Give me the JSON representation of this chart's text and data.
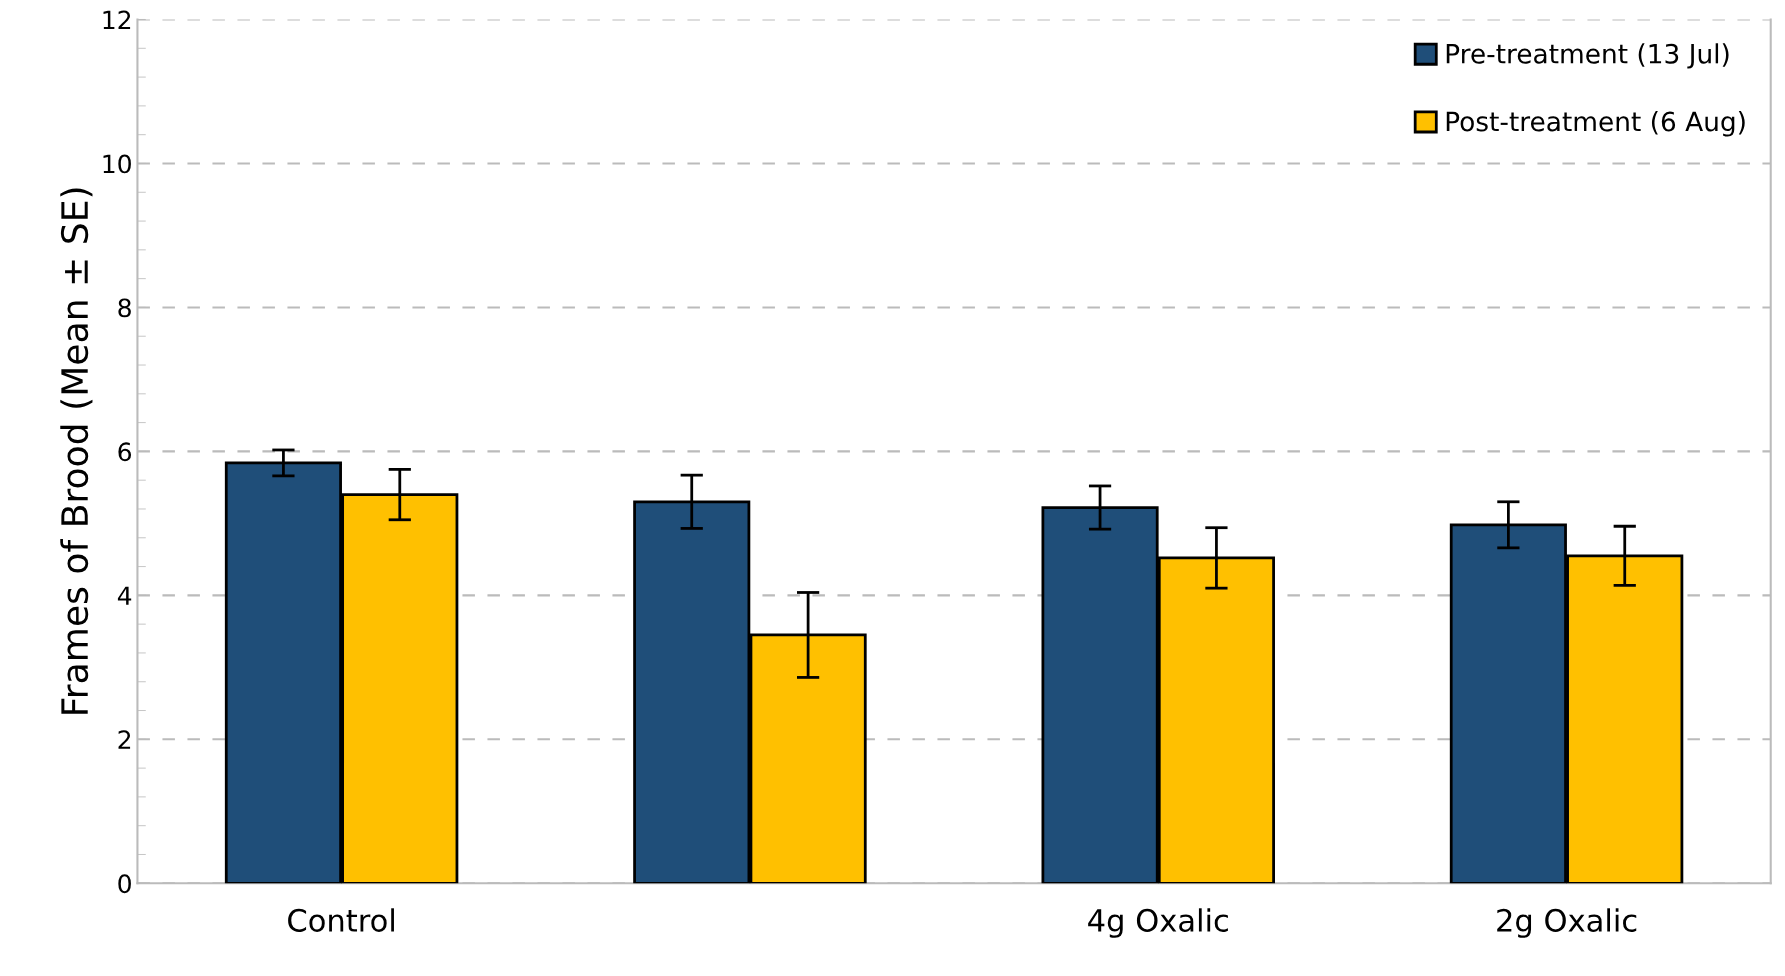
{
  "chart_data": {
    "type": "bar",
    "ylabel": "Frames of Brood (Mean ± SE)",
    "categories": [
      "Control",
      null,
      "4g Oxalic",
      "2g Oxalic"
    ],
    "series": [
      {
        "name": "Pre-treatment (13 Jul)",
        "color": "#1f4e79",
        "values": [
          5.84,
          5.3,
          5.22,
          4.98
        ],
        "errors": [
          0.18,
          0.37,
          0.3,
          0.32
        ]
      },
      {
        "name": "Post-treatment (6 Aug)",
        "color": "#ffc000",
        "values": [
          5.4,
          3.45,
          4.52,
          4.55
        ],
        "errors": [
          0.35,
          0.59,
          0.42,
          0.41
        ]
      }
    ],
    "ylim": [
      0,
      12
    ],
    "yticks": [
      0,
      2,
      4,
      6,
      8,
      10,
      12
    ],
    "grid": "y",
    "legend": "top right"
  }
}
